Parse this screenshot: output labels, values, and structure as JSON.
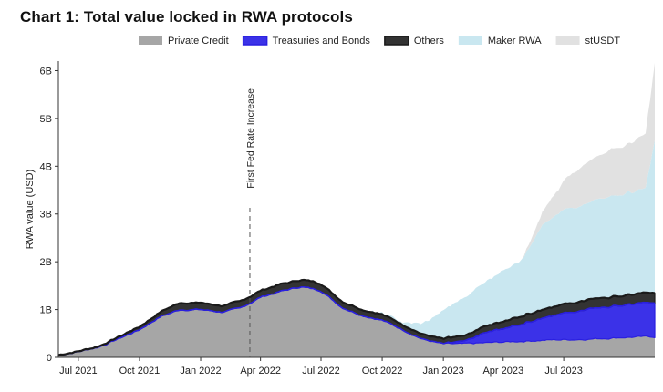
{
  "title": "Chart 1: Total value locked in RWA protocols",
  "chart_data": {
    "type": "area",
    "stacked": true,
    "ylabel": "RWA value (USD)",
    "ylim": [
      0,
      6200000000
    ],
    "yticks": [
      {
        "value": 0,
        "label": "0"
      },
      {
        "value": 1000000000,
        "label": "1B"
      },
      {
        "value": 2000000000,
        "label": "2B"
      },
      {
        "value": 3000000000,
        "label": "3B"
      },
      {
        "value": 4000000000,
        "label": "4B"
      },
      {
        "value": 5000000000,
        "label": "5B"
      },
      {
        "value": 6000000000,
        "label": "6B"
      }
    ],
    "xlim": [
      "2021-06-01",
      "2023-11-15"
    ],
    "xticks": [
      {
        "value": "2021-07-01",
        "label": "Jul 2021"
      },
      {
        "value": "2021-10-01",
        "label": "Oct 2021"
      },
      {
        "value": "2022-01-01",
        "label": "Jan 2022"
      },
      {
        "value": "2022-04-01",
        "label": "Apr 2022"
      },
      {
        "value": "2022-07-01",
        "label": "Jul 2022"
      },
      {
        "value": "2022-10-01",
        "label": "Oct 2022"
      },
      {
        "value": "2023-01-01",
        "label": "Jan 2023"
      },
      {
        "value": "2023-04-01",
        "label": "Apr 2023"
      },
      {
        "value": "2023-07-01",
        "label": "Jul 2023"
      }
    ],
    "legend_position": "top",
    "grid": false,
    "x": [
      "2021-06-01",
      "2021-07-01",
      "2021-08-01",
      "2021-09-01",
      "2021-10-01",
      "2021-11-01",
      "2021-12-01",
      "2022-01-01",
      "2022-02-01",
      "2022-03-01",
      "2022-04-01",
      "2022-05-01",
      "2022-06-01",
      "2022-07-01",
      "2022-08-01",
      "2022-09-01",
      "2022-10-01",
      "2022-11-01",
      "2022-12-01",
      "2023-01-01",
      "2023-02-01",
      "2023-03-01",
      "2023-04-01",
      "2023-05-01",
      "2023-06-01",
      "2023-07-01",
      "2023-08-01",
      "2023-09-01",
      "2023-10-01",
      "2023-11-01",
      "2023-11-15"
    ],
    "series": [
      {
        "name": "Private Credit",
        "color": "#a6a6a6",
        "values": [
          0.05,
          0.12,
          0.22,
          0.4,
          0.58,
          0.85,
          1.0,
          1.0,
          0.95,
          1.02,
          1.26,
          1.38,
          1.48,
          1.4,
          1.05,
          0.88,
          0.78,
          0.58,
          0.38,
          0.28,
          0.28,
          0.3,
          0.32,
          0.34,
          0.36,
          0.37,
          0.38,
          0.4,
          0.42,
          0.43,
          0.43
        ]
      },
      {
        "name": "Treasuries and Bonds",
        "color": "#3b32e8",
        "values": [
          0,
          0,
          0,
          0,
          0,
          0,
          0,
          0,
          0,
          0,
          0,
          0,
          0,
          0,
          0,
          0,
          0,
          0,
          0,
          0,
          0.05,
          0.2,
          0.28,
          0.38,
          0.48,
          0.55,
          0.62,
          0.66,
          0.68,
          0.7,
          0.71
        ]
      },
      {
        "name": "Others",
        "color": "#333333",
        "values": [
          0,
          0.01,
          0.02,
          0.04,
          0.06,
          0.1,
          0.14,
          0.14,
          0.13,
          0.14,
          0.14,
          0.15,
          0.15,
          0.15,
          0.13,
          0.12,
          0.12,
          0.11,
          0.1,
          0.1,
          0.11,
          0.13,
          0.15,
          0.17,
          0.18,
          0.19,
          0.19,
          0.2,
          0.2,
          0.21,
          0.21
        ]
      },
      {
        "name": "Maker RWA",
        "color": "#c9e7f0",
        "values": [
          0,
          0,
          0,
          0,
          0,
          0,
          0,
          0,
          0,
          0,
          0,
          0,
          0,
          0,
          0,
          0,
          0.01,
          0.06,
          0.22,
          0.58,
          0.8,
          0.92,
          1.08,
          1.22,
          1.78,
          1.96,
          2.04,
          2.1,
          2.13,
          2.16,
          3.2
        ]
      },
      {
        "name": "stUSDT",
        "color": "#e1e1e1",
        "values": [
          0,
          0,
          0,
          0,
          0,
          0,
          0,
          0,
          0,
          0,
          0,
          0,
          0,
          0,
          0,
          0,
          0,
          0,
          0,
          0,
          0,
          0,
          0,
          0,
          0.3,
          0.6,
          0.85,
          0.95,
          1.0,
          1.15,
          1.6
        ]
      }
    ],
    "annotations": [
      {
        "x": "2022-03-16",
        "label": "First Fed Rate Increase"
      }
    ]
  }
}
